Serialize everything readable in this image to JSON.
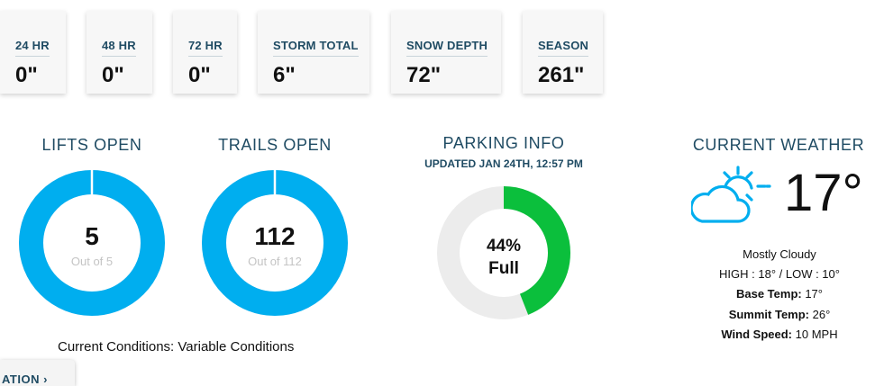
{
  "snow_stats": [
    {
      "label": "24 HR",
      "value": "0\""
    },
    {
      "label": "48 HR",
      "value": "0\""
    },
    {
      "label": "72 HR",
      "value": "0\""
    },
    {
      "label": "STORM TOTAL",
      "value": "6\""
    },
    {
      "label": "SNOW DEPTH",
      "value": "72\""
    },
    {
      "label": "SEASON",
      "value": "261\""
    }
  ],
  "lifts": {
    "title": "LIFTS OPEN",
    "open": "5",
    "out_of": "Out of 5",
    "fraction_open": 1.0
  },
  "trails": {
    "title": "TRAILS OPEN",
    "open": "112",
    "out_of": "Out of 112",
    "fraction_open": 1.0
  },
  "parking": {
    "title": "PARKING INFO",
    "updated": "UPDATED JAN 24TH, 12:57 PM",
    "percent": "44%",
    "status": "Full",
    "fraction_full": 0.44
  },
  "conditions": "Current Conditions: Variable Conditions",
  "weather": {
    "title": "CURRENT WEATHER",
    "icon": "partly-cloudy-icon",
    "temperature": "17°",
    "summary": "Mostly Cloudy",
    "high_low": "HIGH : 18° / LOW : 10°",
    "base_temp_label": "Base Temp:",
    "base_temp_value": " 17°",
    "summit_temp_label": "Summit Temp:",
    "summit_temp_value": " 26°",
    "wind_label": "Wind Speed:",
    "wind_value": " 10 MPH"
  },
  "footer_tab": {
    "label": "ATION  ›"
  },
  "colors": {
    "accent_blue": "#00aeef",
    "parking_green": "#0bbf3c",
    "track_gray": "#ececec",
    "heading_navy": "#1f4b63"
  }
}
